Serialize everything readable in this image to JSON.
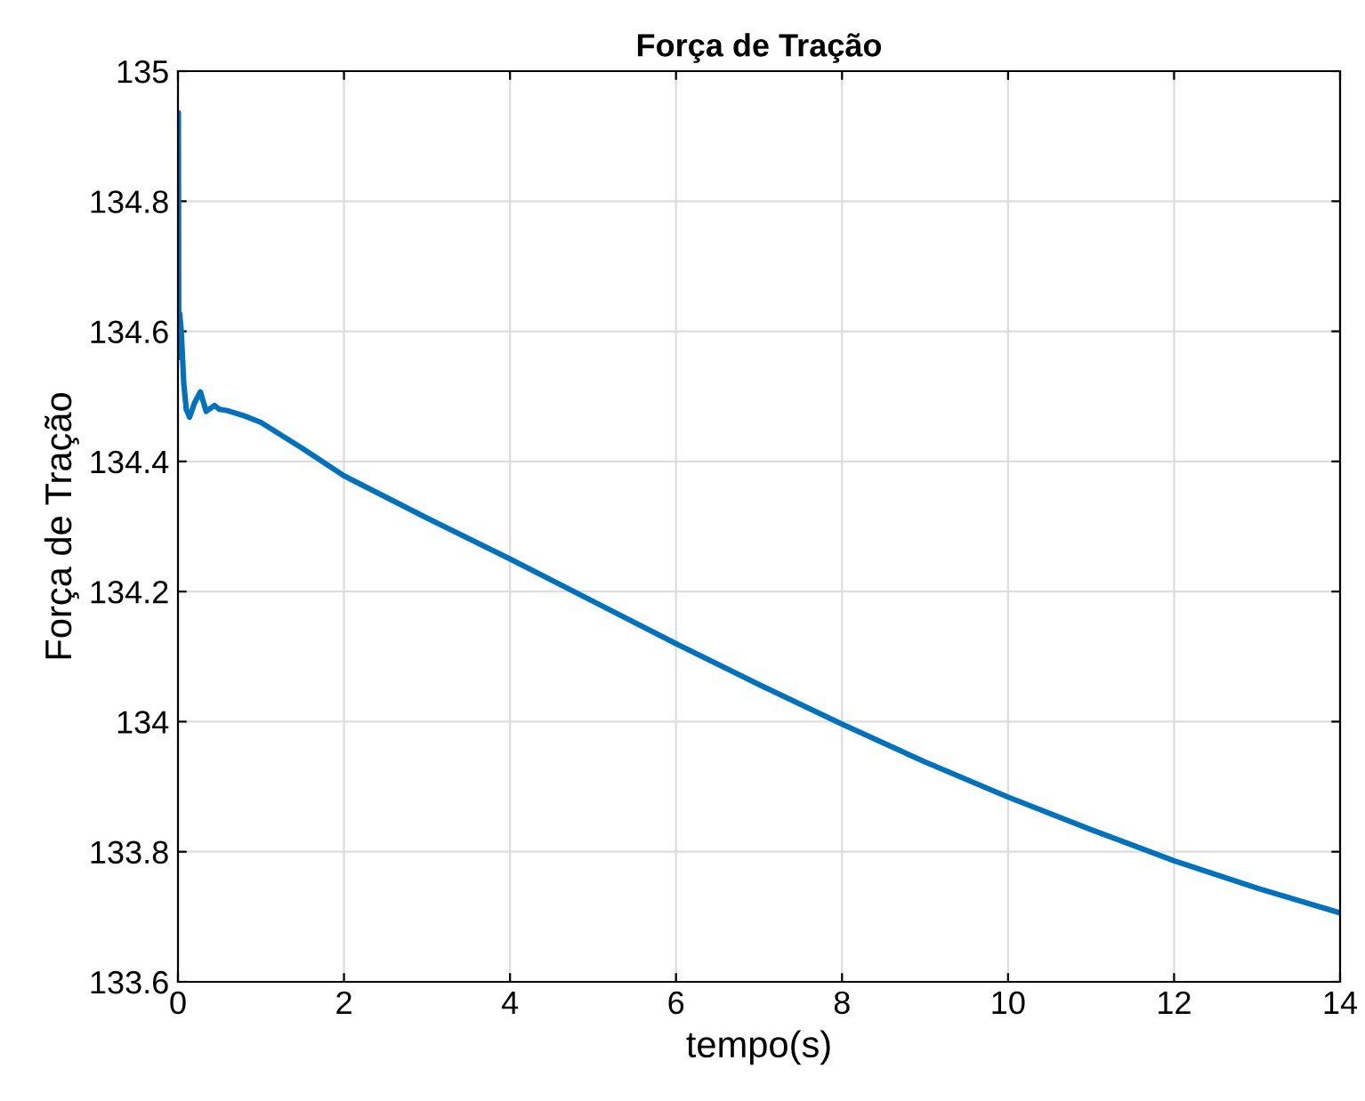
{
  "chart_data": {
    "type": "line",
    "title": "Força de Tração",
    "xlabel": "tempo(s)",
    "ylabel": "Força de Tração",
    "series": [
      {
        "color": "#0072bd",
        "x": [
          0,
          0.005,
          0.01,
          0.02,
          0.04,
          0.07,
          0.1,
          0.14,
          0.2,
          0.27,
          0.34,
          0.44,
          0.5,
          0.6,
          0.8,
          1,
          1.5,
          2,
          3,
          4,
          5,
          6,
          7,
          8,
          9,
          10,
          11,
          12,
          13,
          14
        ],
        "values": [
          134.56,
          134.936,
          134.56,
          134.627,
          134.6,
          134.52,
          134.48,
          134.468,
          134.49,
          134.507,
          134.477,
          134.486,
          134.48,
          134.478,
          134.47,
          134.46,
          134.42,
          134.378,
          134.313,
          134.25,
          134.185,
          134.12,
          134.057,
          133.996,
          133.938,
          133.884,
          133.834,
          133.786,
          133.744,
          133.706
        ]
      }
    ],
    "xlim": [
      0,
      14
    ],
    "xticks": [
      0,
      2,
      4,
      6,
      8,
      10,
      12,
      14
    ],
    "ylim": [
      133.6,
      135
    ],
    "yticks": [
      133.6,
      133.8,
      134,
      134.2,
      134.4,
      134.6,
      134.8,
      135
    ],
    "grid": true,
    "legend": false,
    "marker": "none",
    "line_style": "solid"
  }
}
